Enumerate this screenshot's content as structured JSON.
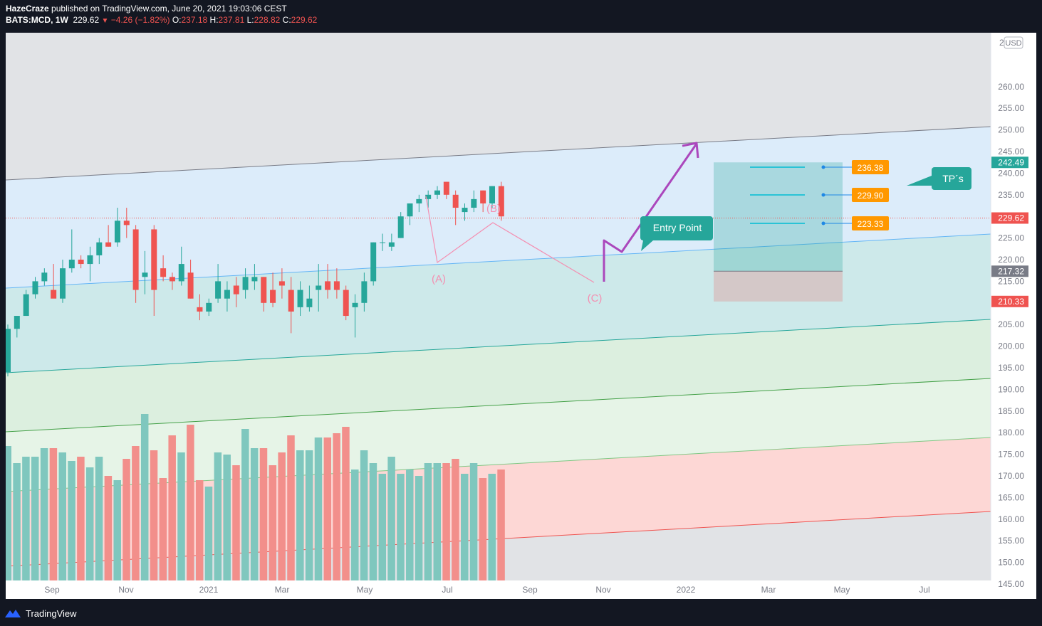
{
  "header": {
    "publisher": "HazeCraze",
    "published_text": "published on TradingView.com, June 20, 2021 19:03:06 CEST",
    "symbol": "BATS:MCD, 1W",
    "last": "229.62",
    "change": "−4.26 (−1.82%)",
    "o_label": "O:",
    "o": "237.18",
    "h_label": "H:",
    "h": "237.81",
    "l_label": "L:",
    "l": "228.82",
    "c_label": "C:",
    "c": "229.62"
  },
  "footer": {
    "brand": "TradingView"
  },
  "colors": {
    "up": "#26a69a",
    "down": "#ef5350",
    "vol_up": "#7fc7be",
    "vol_down": "#f28f8b",
    "wave": "#f48fb1",
    "arrow": "#ab47bc",
    "callout": "#26a69a",
    "tp_box": "#ff9800"
  },
  "chart_data": {
    "type": "candlestick",
    "currency": "USD",
    "y_range": [
      142,
      267
    ],
    "y_ticks": [
      "145.00",
      "150.00",
      "155.00",
      "160.00",
      "165.00",
      "170.00",
      "175.00",
      "180.00",
      "185.00",
      "190.00",
      "195.00",
      "200.00",
      "205.00",
      "210.00",
      "215.00",
      "220.00",
      "225.00",
      "230.00",
      "235.00",
      "240.00",
      "245.00",
      "250.00",
      "255.00",
      "260.00"
    ],
    "x_labels": [
      "Sep",
      "Nov",
      "2021",
      "Mar",
      "May",
      "Jul",
      "Sep",
      "Nov",
      "2022",
      "Mar",
      "May",
      "Jul"
    ],
    "candles": [
      {
        "o": 194,
        "h": 205,
        "l": 193,
        "c": 204
      },
      {
        "o": 204,
        "h": 207,
        "l": 202,
        "c": 207
      },
      {
        "o": 207,
        "h": 213,
        "l": 207,
        "c": 212
      },
      {
        "o": 212,
        "h": 216,
        "l": 211,
        "c": 215
      },
      {
        "o": 215,
        "h": 218,
        "l": 214,
        "c": 217
      },
      {
        "o": 213,
        "h": 219,
        "l": 212,
        "c": 211
      },
      {
        "o": 211,
        "h": 220,
        "l": 210,
        "c": 218
      },
      {
        "o": 218,
        "h": 227,
        "l": 217,
        "c": 220
      },
      {
        "o": 220,
        "h": 221,
        "l": 218,
        "c": 219
      },
      {
        "o": 219,
        "h": 223,
        "l": 215,
        "c": 221
      },
      {
        "o": 221,
        "h": 225,
        "l": 219,
        "c": 224
      },
      {
        "o": 224,
        "h": 228,
        "l": 223,
        "c": 223
      },
      {
        "o": 224,
        "h": 232,
        "l": 223,
        "c": 229
      },
      {
        "o": 229,
        "h": 232,
        "l": 225,
        "c": 228
      },
      {
        "o": 227,
        "h": 228,
        "l": 210,
        "c": 213
      },
      {
        "o": 216,
        "h": 222,
        "l": 212,
        "c": 217
      },
      {
        "o": 227,
        "h": 228,
        "l": 207,
        "c": 213
      },
      {
        "o": 218,
        "h": 221,
        "l": 215,
        "c": 216
      },
      {
        "o": 216,
        "h": 217,
        "l": 213,
        "c": 215
      },
      {
        "o": 215,
        "h": 223,
        "l": 214,
        "c": 219
      },
      {
        "o": 217,
        "h": 220,
        "l": 211,
        "c": 211
      },
      {
        "o": 209,
        "h": 212,
        "l": 206,
        "c": 208
      },
      {
        "o": 208,
        "h": 211,
        "l": 207,
        "c": 210
      },
      {
        "o": 211,
        "h": 219,
        "l": 210,
        "c": 215
      },
      {
        "o": 211,
        "h": 215,
        "l": 208,
        "c": 213
      },
      {
        "o": 214,
        "h": 216,
        "l": 209,
        "c": 212
      },
      {
        "o": 213,
        "h": 218,
        "l": 211,
        "c": 216
      },
      {
        "o": 215,
        "h": 219,
        "l": 213,
        "c": 216
      },
      {
        "o": 216,
        "h": 216,
        "l": 208,
        "c": 210
      },
      {
        "o": 213,
        "h": 217,
        "l": 209,
        "c": 210
      },
      {
        "o": 215,
        "h": 218,
        "l": 211,
        "c": 214
      },
      {
        "o": 213,
        "h": 216,
        "l": 203,
        "c": 208
      },
      {
        "o": 209,
        "h": 215,
        "l": 207,
        "c": 213
      },
      {
        "o": 209,
        "h": 214,
        "l": 208,
        "c": 211
      },
      {
        "o": 213,
        "h": 219,
        "l": 208,
        "c": 214
      },
      {
        "o": 215,
        "h": 219,
        "l": 211,
        "c": 213
      },
      {
        "o": 215,
        "h": 218,
        "l": 211,
        "c": 213
      },
      {
        "o": 213,
        "h": 214,
        "l": 206,
        "c": 207
      },
      {
        "o": 209,
        "h": 212,
        "l": 202,
        "c": 210
      },
      {
        "o": 210,
        "h": 217,
        "l": 208,
        "c": 215
      },
      {
        "o": 215,
        "h": 224,
        "l": 214,
        "c": 224
      },
      {
        "o": 224,
        "h": 226,
        "l": 222,
        "c": 224
      },
      {
        "o": 223,
        "h": 226,
        "l": 222,
        "c": 224
      },
      {
        "o": 225,
        "h": 231,
        "l": 225,
        "c": 230
      },
      {
        "o": 230,
        "h": 233,
        "l": 228,
        "c": 233
      },
      {
        "o": 233,
        "h": 235,
        "l": 231,
        "c": 234
      },
      {
        "o": 234,
        "h": 236,
        "l": 232,
        "c": 235
      },
      {
        "o": 235,
        "h": 237,
        "l": 234,
        "c": 236
      },
      {
        "o": 238,
        "h": 238,
        "l": 234,
        "c": 235
      },
      {
        "o": 235,
        "h": 236,
        "l": 228,
        "c": 232
      },
      {
        "o": 231,
        "h": 233,
        "l": 229,
        "c": 232
      },
      {
        "o": 232,
        "h": 236,
        "l": 231,
        "c": 234
      },
      {
        "o": 236,
        "h": 236,
        "l": 231,
        "c": 233
      },
      {
        "o": 233,
        "h": 237,
        "l": 232,
        "c": 237
      },
      {
        "o": 237,
        "h": 238,
        "l": 229,
        "c": 230
      }
    ],
    "volume_relative": [
      0.63,
      0.55,
      0.58,
      0.58,
      0.62,
      0.62,
      0.6,
      0.56,
      0.58,
      0.53,
      0.58,
      0.49,
      0.47,
      0.57,
      0.63,
      0.78,
      0.61,
      0.48,
      0.68,
      0.6,
      0.73,
      0.47,
      0.44,
      0.6,
      0.59,
      0.54,
      0.71,
      0.62,
      0.62,
      0.54,
      0.6,
      0.68,
      0.61,
      0.61,
      0.67,
      0.67,
      0.69,
      0.72,
      0.52,
      0.61,
      0.55,
      0.5,
      0.58,
      0.5,
      0.52,
      0.49,
      0.55,
      0.55,
      0.55,
      0.57,
      0.5,
      0.55,
      0.48,
      0.5,
      0.52
    ],
    "price_labels": [
      {
        "value": 242.49,
        "text": "242.49",
        "color": "#26a69a"
      },
      {
        "value": 229.62,
        "text": "229.62",
        "color": "#ef5350"
      },
      {
        "value": 217.32,
        "text": "217.32",
        "color": "#787b86"
      },
      {
        "value": 210.33,
        "text": "210.33",
        "color": "#ef5350"
      }
    ],
    "take_profits": [
      "236.38",
      "229.90",
      "223.33"
    ],
    "wave_labels": [
      "(A)",
      "(B)",
      "(C)"
    ],
    "annotations": {
      "entry": "Entry Point",
      "tps": "TP´s"
    },
    "position": {
      "entry": 217.32,
      "target": 242.49,
      "stop": 210.33
    }
  }
}
